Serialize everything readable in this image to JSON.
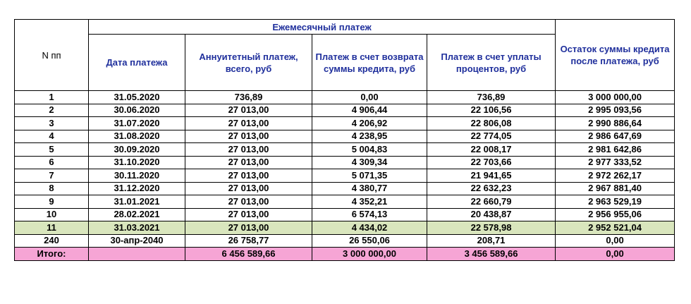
{
  "table": {
    "header": {
      "number": "N пп",
      "group": "Ежемесячный платеж",
      "columns": [
        "Дата платежа",
        "Аннуитетный платеж, всего, руб",
        "Платеж в счет возврата суммы кредита, руб",
        "Платеж в счет уплаты процентов, руб"
      ],
      "balance": "Остаток суммы кредита после платежа, руб"
    },
    "rows": [
      [
        "1",
        "31.05.2020",
        "736,89",
        "0,00",
        "736,89",
        "3 000 000,00"
      ],
      [
        "2",
        "30.06.2020",
        "27 013,00",
        "4 906,44",
        "22 106,56",
        "2 995 093,56"
      ],
      [
        "3",
        "31.07.2020",
        "27 013,00",
        "4 206,92",
        "22 806,08",
        "2 990 886,64"
      ],
      [
        "4",
        "31.08.2020",
        "27 013,00",
        "4 238,95",
        "22 774,05",
        "2 986 647,69"
      ],
      [
        "5",
        "30.09.2020",
        "27 013,00",
        "5 004,83",
        "22 008,17",
        "2 981 642,86"
      ],
      [
        "6",
        "31.10.2020",
        "27 013,00",
        "4 309,34",
        "22 703,66",
        "2 977 333,52"
      ],
      [
        "7",
        "30.11.2020",
        "27 013,00",
        "5 071,35",
        "21 941,65",
        "2 972 262,17"
      ],
      [
        "8",
        "31.12.2020",
        "27 013,00",
        "4 380,77",
        "22 632,23",
        "2 967 881,40"
      ],
      [
        "9",
        "31.01.2021",
        "27 013,00",
        "4 352,21",
        "22 660,79",
        "2 963 529,19"
      ],
      [
        "10",
        "28.02.2021",
        "27 013,00",
        "6 574,13",
        "20 438,87",
        "2 956 955,06"
      ],
      [
        "11",
        "31.03.2021",
        "27 013,00",
        "4 434,02",
        "22 578,98",
        "2 952 521,04"
      ],
      [
        "240",
        "30-апр-2040",
        "26 758,77",
        "26 550,06",
        "208,71",
        "0,00"
      ]
    ],
    "highlight_row": 10,
    "total": {
      "label": "Итого:",
      "values": [
        "6 456 589,66",
        "3 000 000,00",
        "3 456 589,66",
        "0,00"
      ]
    }
  }
}
